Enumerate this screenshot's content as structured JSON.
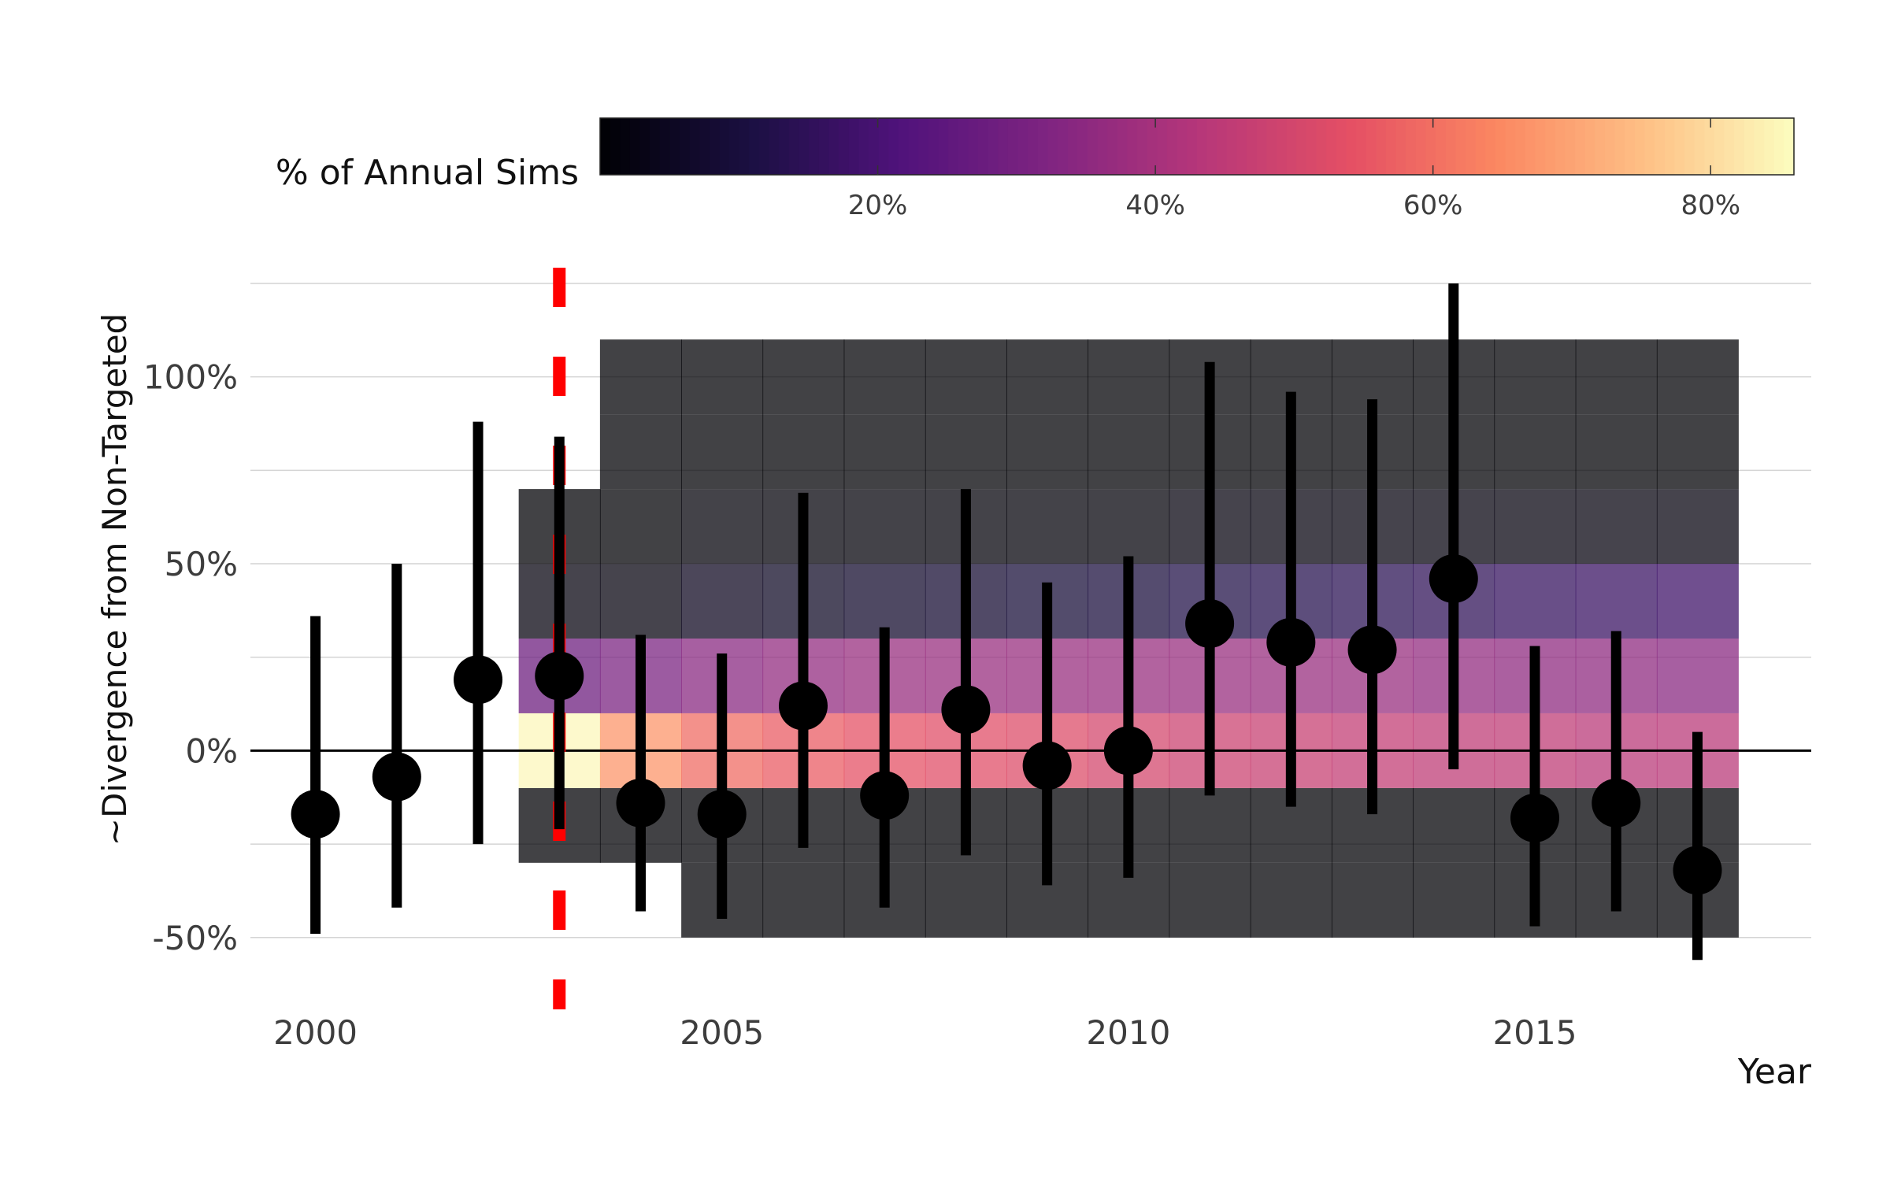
{
  "chart_data": {
    "type": "scatter",
    "title": "",
    "xlabel": "Year",
    "ylabel": "~Divergence from Non-Targeted",
    "xlim": [
      1999.2,
      2018.4
    ],
    "ylim": [
      -65,
      125
    ],
    "x_ticks": [
      2000,
      2005,
      2010,
      2015
    ],
    "x_tick_labels": [
      "2000",
      "2005",
      "2010",
      "2015"
    ],
    "y_ticks": [
      -50,
      0,
      50,
      100
    ],
    "y_tick_labels": [
      "-50%",
      "0%",
      "50%",
      "100%"
    ],
    "grid": true,
    "reference_line": {
      "y": 0
    },
    "vline": {
      "x": 2003,
      "color": "#ff0000",
      "style": "dashed"
    },
    "legend": {
      "title": "% of Annual Sims",
      "position": "top",
      "type": "colorbar",
      "palette": "magma",
      "range": [
        0,
        86
      ],
      "ticks": [
        20,
        40,
        60,
        80
      ],
      "tick_labels": [
        "20%",
        "40%",
        "60%",
        "80%"
      ]
    },
    "series": [
      {
        "type": "pointrange",
        "points": [
          {
            "x": 2000,
            "y": -17,
            "ymin": -49,
            "ymax": 36
          },
          {
            "x": 2001,
            "y": -7,
            "ymin": -42,
            "ymax": 50
          },
          {
            "x": 2002,
            "y": 19,
            "ymin": -25,
            "ymax": 88
          },
          {
            "x": 2003,
            "y": 20,
            "ymin": -21,
            "ymax": 84
          },
          {
            "x": 2004,
            "y": -14,
            "ymin": -43,
            "ymax": 31
          },
          {
            "x": 2005,
            "y": -17,
            "ymin": -45,
            "ymax": 26
          },
          {
            "x": 2006,
            "y": 12,
            "ymin": -26,
            "ymax": 69
          },
          {
            "x": 2007,
            "y": -12,
            "ymin": -42,
            "ymax": 33
          },
          {
            "x": 2008,
            "y": 11,
            "ymin": -28,
            "ymax": 70
          },
          {
            "x": 2009,
            "y": -4,
            "ymin": -36,
            "ymax": 45
          },
          {
            "x": 2010,
            "y": 0,
            "ymin": -34,
            "ymax": 52
          },
          {
            "x": 2011,
            "y": 34,
            "ymin": -12,
            "ymax": 104
          },
          {
            "x": 2012,
            "y": 29,
            "ymin": -15,
            "ymax": 96
          },
          {
            "x": 2013,
            "y": 27,
            "ymin": -17,
            "ymax": 94
          },
          {
            "x": 2014,
            "y": 46,
            "ymin": -5,
            "ymax": 125
          },
          {
            "x": 2015,
            "y": -18,
            "ymin": -47,
            "ymax": 28
          },
          {
            "x": 2016,
            "y": -14,
            "ymin": -43,
            "ymax": 32
          },
          {
            "x": 2017,
            "y": -32,
            "ymin": -56,
            "ymax": 5
          }
        ]
      },
      {
        "type": "heatmap",
        "bands": [
          [
            -50,
            -30
          ],
          [
            -30,
            -10
          ],
          [
            -10,
            10
          ],
          [
            10,
            30
          ],
          [
            30,
            50
          ],
          [
            50,
            70
          ],
          [
            70,
            90
          ],
          [
            90,
            110
          ]
        ],
        "columns": [
          {
            "x": 2003,
            "values": [
              null,
              0,
              85,
              28,
              2,
              0,
              null,
              null
            ]
          },
          {
            "x": 2004,
            "values": [
              null,
              0,
              67,
              31,
              2,
              0,
              0,
              0
            ]
          },
          {
            "x": 2005,
            "values": [
              0,
              0,
              59,
              34,
              5,
              1,
              0,
              0
            ]
          },
          {
            "x": 2006,
            "values": [
              0,
              0,
              56,
              36,
              6,
              1,
              0,
              0
            ]
          },
          {
            "x": 2007,
            "values": [
              0,
              0,
              54,
              37,
              7,
              1,
              0,
              0
            ]
          },
          {
            "x": 2008,
            "values": [
              0,
              0,
              53,
              37,
              8,
              1,
              0,
              0
            ]
          },
          {
            "x": 2009,
            "values": [
              0,
              0,
              52,
              37,
              9,
              1,
              0,
              0
            ]
          },
          {
            "x": 2010,
            "values": [
              0,
              0,
              50,
              37,
              10,
              1,
              0,
              0
            ]
          },
          {
            "x": 2011,
            "values": [
              0,
              0,
              48,
              37,
              12,
              2,
              0,
              0
            ]
          },
          {
            "x": 2012,
            "values": [
              0,
              0,
              47,
              37,
              13,
              2,
              0,
              0
            ]
          },
          {
            "x": 2013,
            "values": [
              0,
              0,
              46,
              37,
              14,
              2,
              0,
              0
            ]
          },
          {
            "x": 2014,
            "values": [
              0,
              0,
              45,
              36,
              15,
              2,
              0,
              0
            ]
          },
          {
            "x": 2015,
            "values": [
              0,
              0,
              45,
              35,
              16,
              2,
              0,
              0
            ]
          },
          {
            "x": 2016,
            "values": [
              0,
              0,
              44,
              35,
              17,
              2,
              0,
              0
            ]
          },
          {
            "x": 2017,
            "values": [
              0,
              0,
              44,
              34,
              18,
              2,
              0,
              0
            ]
          }
        ]
      }
    ]
  }
}
